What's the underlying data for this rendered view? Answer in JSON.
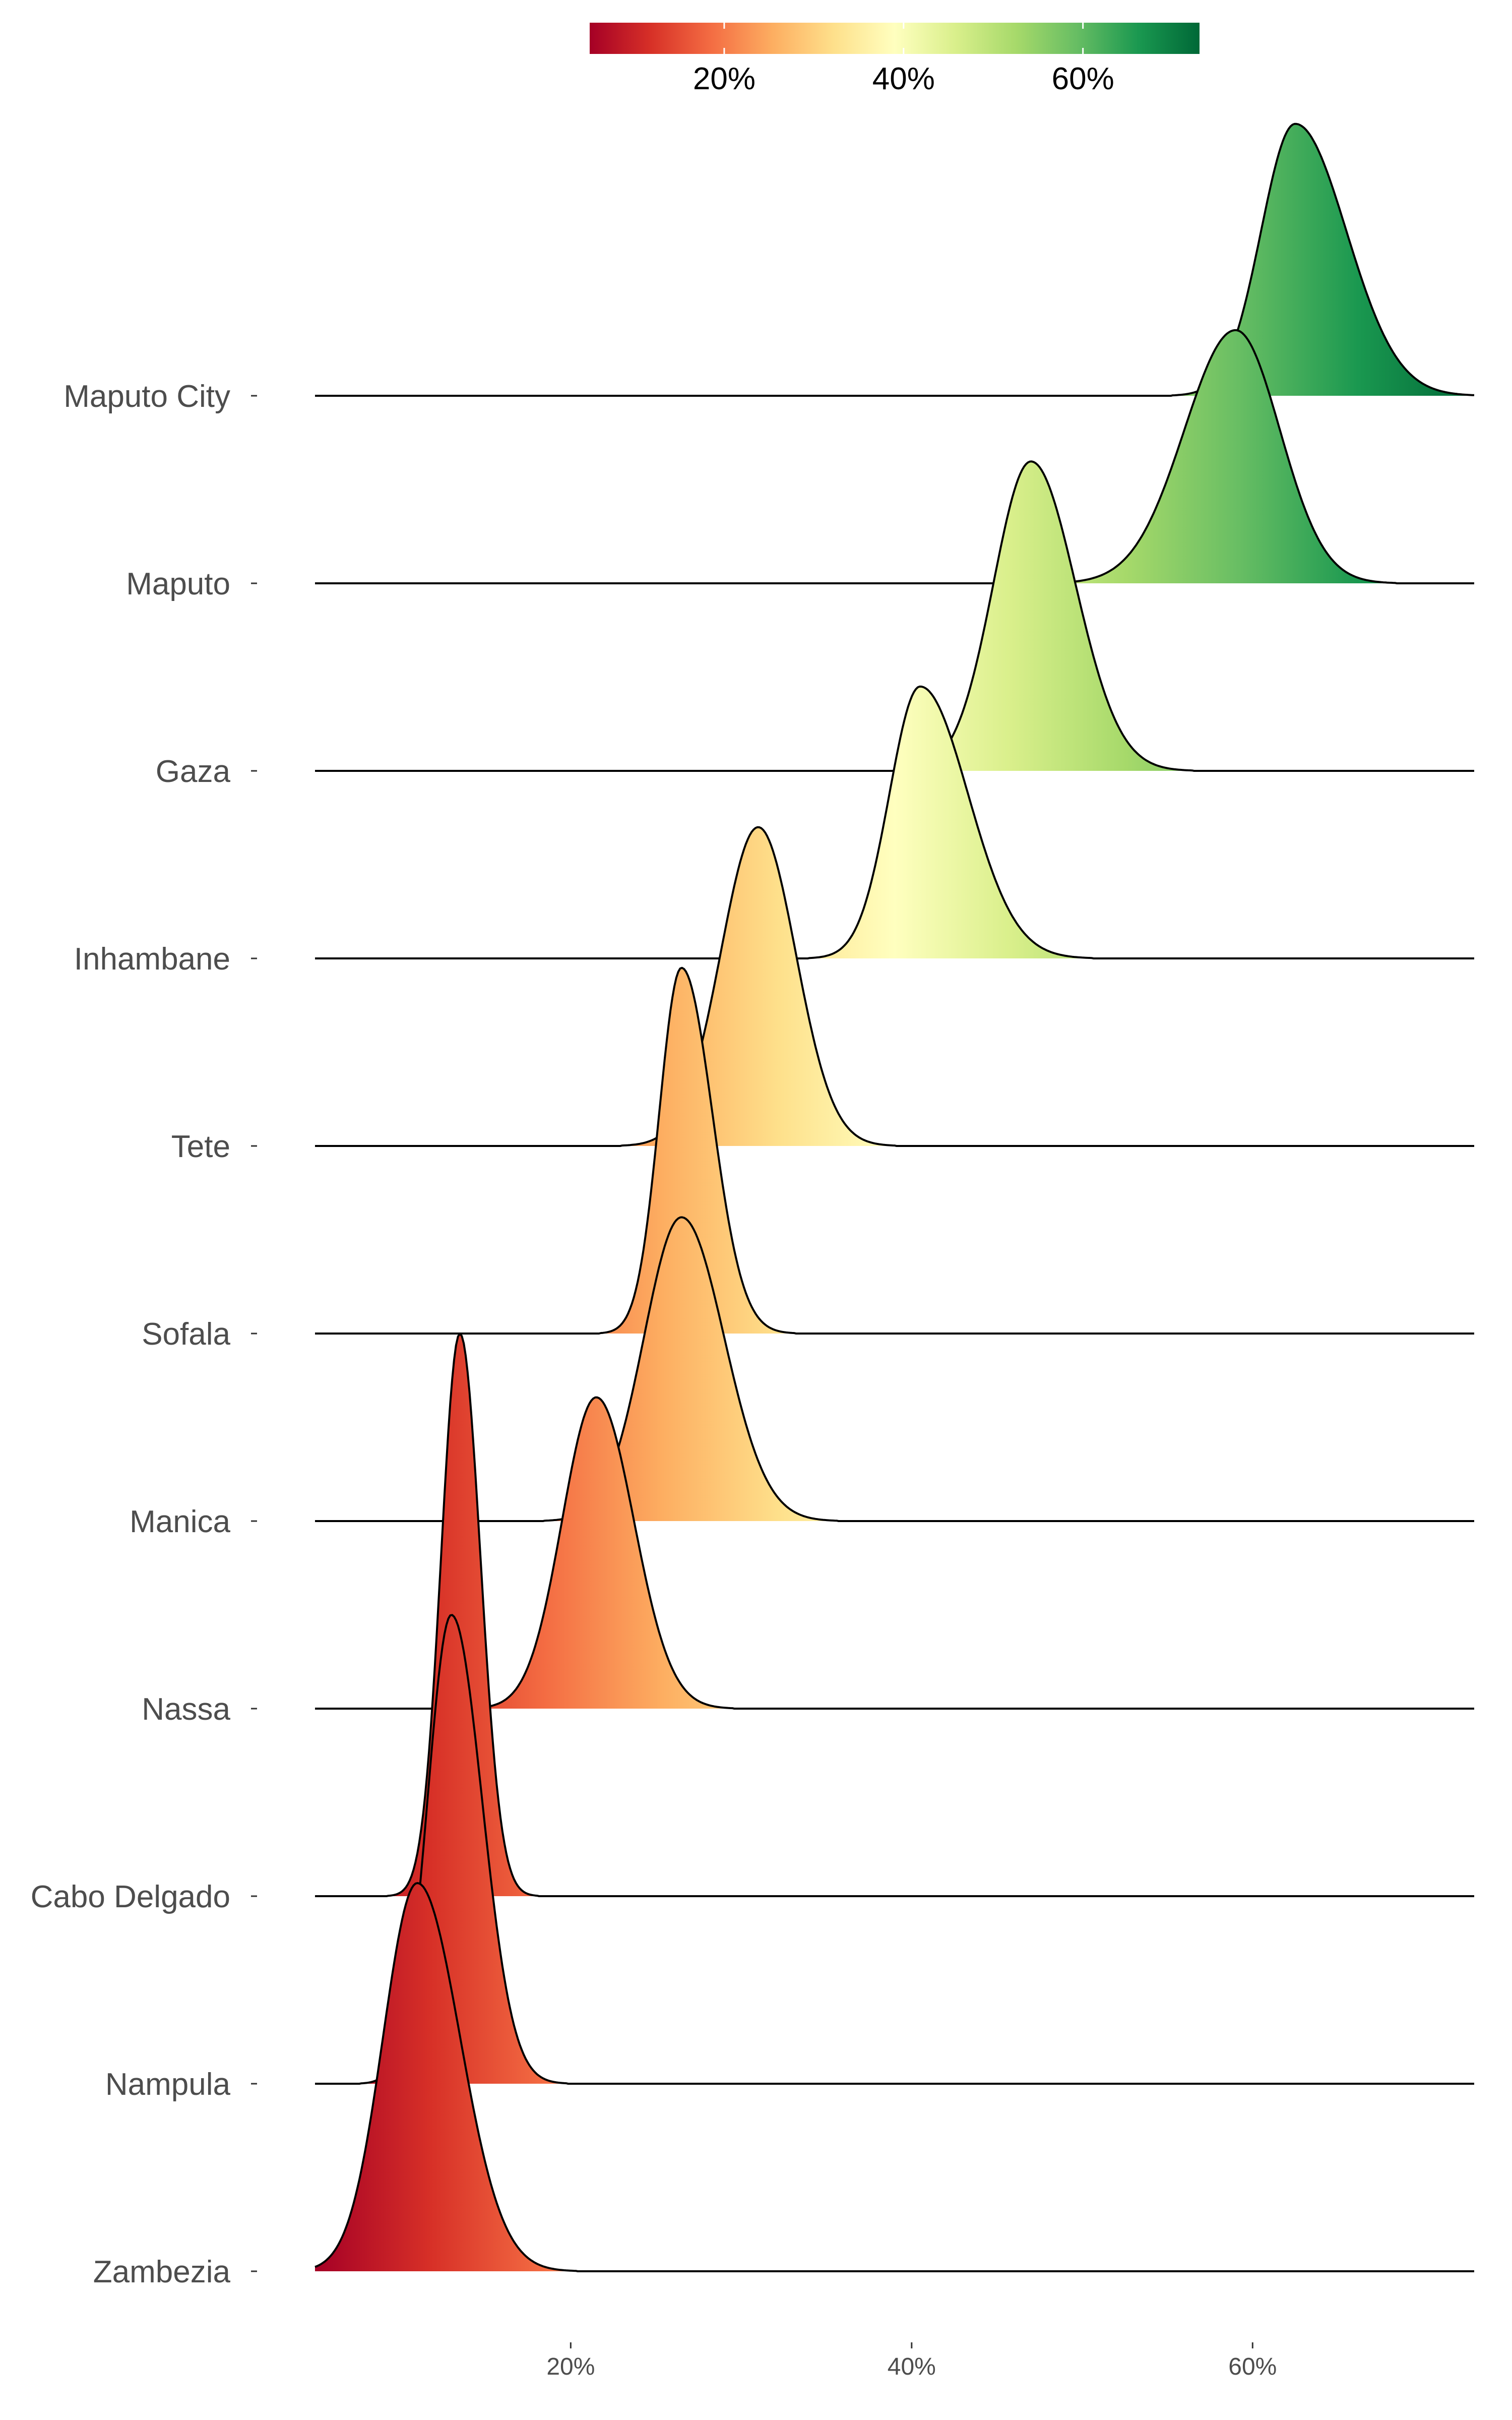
{
  "chart_data": {
    "type": "ridgeline",
    "title": "",
    "xlabel": "",
    "ylabel": "",
    "x_range": [
      5,
      73
    ],
    "x_ticks": [
      {
        "value": 20,
        "label": "20%"
      },
      {
        "value": 40,
        "label": "40%"
      },
      {
        "value": 60,
        "label": "60%"
      }
    ],
    "colorbar": {
      "range": [
        5,
        73
      ],
      "ticks": [
        {
          "value": 20,
          "label": "20%"
        },
        {
          "value": 40,
          "label": "40%"
        },
        {
          "value": 60,
          "label": "60%"
        }
      ],
      "palette": "RdYlGn"
    },
    "grid": false,
    "legend_position": "top-center",
    "series": [
      {
        "name": "Maputo City",
        "peak": 62.5,
        "sd_left": 2.0,
        "sd_right": 3.0,
        "height": 1.45
      },
      {
        "name": "Maputo",
        "peak": 59.0,
        "sd_left": 3.0,
        "sd_right": 2.6,
        "height": 1.35
      },
      {
        "name": "Gaza",
        "peak": 47.0,
        "sd_left": 2.2,
        "sd_right": 2.6,
        "height": 1.65
      },
      {
        "name": "Inhambane",
        "peak": 40.5,
        "sd_left": 1.8,
        "sd_right": 2.8,
        "height": 1.45
      },
      {
        "name": "Tete",
        "peak": 31.0,
        "sd_left": 2.2,
        "sd_right": 2.2,
        "height": 1.7
      },
      {
        "name": "Sofala",
        "peak": 26.5,
        "sd_left": 1.3,
        "sd_right": 1.8,
        "height": 1.95
      },
      {
        "name": "Manica",
        "peak": 26.5,
        "sd_left": 2.2,
        "sd_right": 2.5,
        "height": 1.62
      },
      {
        "name": "Nassa",
        "peak": 21.5,
        "sd_left": 2.0,
        "sd_right": 2.2,
        "height": 1.66
      },
      {
        "name": "Cabo Delgado",
        "peak": 13.5,
        "sd_left": 1.1,
        "sd_right": 1.2,
        "height": 3.0
      },
      {
        "name": "Nampula",
        "peak": 13.0,
        "sd_left": 1.4,
        "sd_right": 1.8,
        "height": 2.5
      },
      {
        "name": "Zambezia",
        "peak": 11.0,
        "sd_left": 2.0,
        "sd_right": 2.5,
        "height": 2.07
      }
    ]
  },
  "style": {
    "line_color": "#000000",
    "label_color": "#4d4d4d",
    "palette_stops": [
      "#a50026",
      "#d73027",
      "#f46d43",
      "#fdae61",
      "#fee08b",
      "#ffffbf",
      "#d9ef8b",
      "#a6d96a",
      "#66bd63",
      "#1a9850",
      "#006837"
    ]
  }
}
